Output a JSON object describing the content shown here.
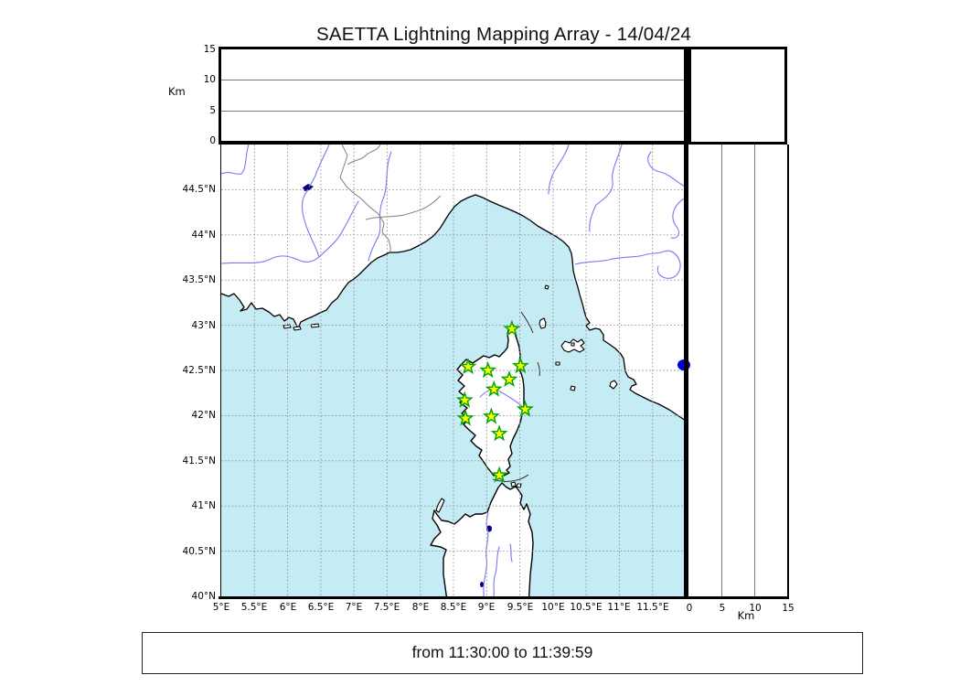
{
  "title": "SAETTA Lightning Mapping Array - 14/04/24",
  "time_range_label": "from 11:30:00 to 11:39:59",
  "axes": {
    "altitude_unit_top": "Km",
    "altitude_unit_right": "Km",
    "top_alt_ticks": [
      "15",
      "10",
      "5",
      "0"
    ],
    "right_alt_ticks": [
      "0",
      "5",
      "10",
      "15"
    ],
    "lat_ticks": [
      "44.5°N",
      "44°N",
      "43.5°N",
      "43°N",
      "42.5°N",
      "42°N",
      "41.5°N",
      "41°N",
      "40.5°N",
      "40°N"
    ],
    "lon_ticks": [
      "5°E",
      "5.5°E",
      "6°E",
      "6.5°E",
      "7°E",
      "7.5°E",
      "8°E",
      "8.5°E",
      "9°E",
      "9.5°E",
      "10°E",
      "10.5°E",
      "11°E",
      "11.5°E"
    ]
  },
  "colors": {
    "sea": "#c5ebf5",
    "land": "#ffffff",
    "coastline": "#000000",
    "river": "#7878f0",
    "admin_border": "#808080",
    "grid": "#8c8c8c",
    "station_fill": "#ffff00",
    "station_stroke": "#00a800",
    "source_dot": "#0000dd",
    "lake": "#000080"
  },
  "chart_data": {
    "type": "scatter",
    "title": "SAETTA Lightning Mapping Array - 14/04/24",
    "subtitle": "from 11:30:00 to 11:39:59",
    "layout": "geographic map (lon 5E-12E, lat 40N-45N) with altitude-vs-longitude panel on top, altitude-vs-latitude panel on right, 0.5 deg dashed grid",
    "map_extent": {
      "lon_min": 5,
      "lon_max": 12,
      "lat_min": 40,
      "lat_max": 45
    },
    "altitude_axis": {
      "unit": "Km",
      "min": 0,
      "max": 15,
      "gridlines_km": [
        5,
        10
      ]
    },
    "grid_step_deg": 0.5,
    "stations": {
      "name": "SAETTA LMA stations",
      "marker": "star",
      "points": [
        {
          "lon": 9.38,
          "lat": 42.96
        },
        {
          "lon": 8.72,
          "lat": 42.54
        },
        {
          "lon": 9.02,
          "lat": 42.5
        },
        {
          "lon": 9.51,
          "lat": 42.55
        },
        {
          "lon": 9.34,
          "lat": 42.4
        },
        {
          "lon": 9.11,
          "lat": 42.29
        },
        {
          "lon": 8.67,
          "lat": 42.17
        },
        {
          "lon": 9.58,
          "lat": 42.07
        },
        {
          "lon": 8.68,
          "lat": 41.97
        },
        {
          "lon": 9.07,
          "lat": 41.99
        },
        {
          "lon": 9.19,
          "lat": 41.8
        },
        {
          "lon": 9.19,
          "lat": 41.34
        }
      ]
    },
    "lightning_sources": {
      "marker": "filled circle",
      "points": [
        {
          "panel": "right-alt-vs-lat",
          "lat": 42.56,
          "alt_km": 0
        }
      ]
    }
  }
}
